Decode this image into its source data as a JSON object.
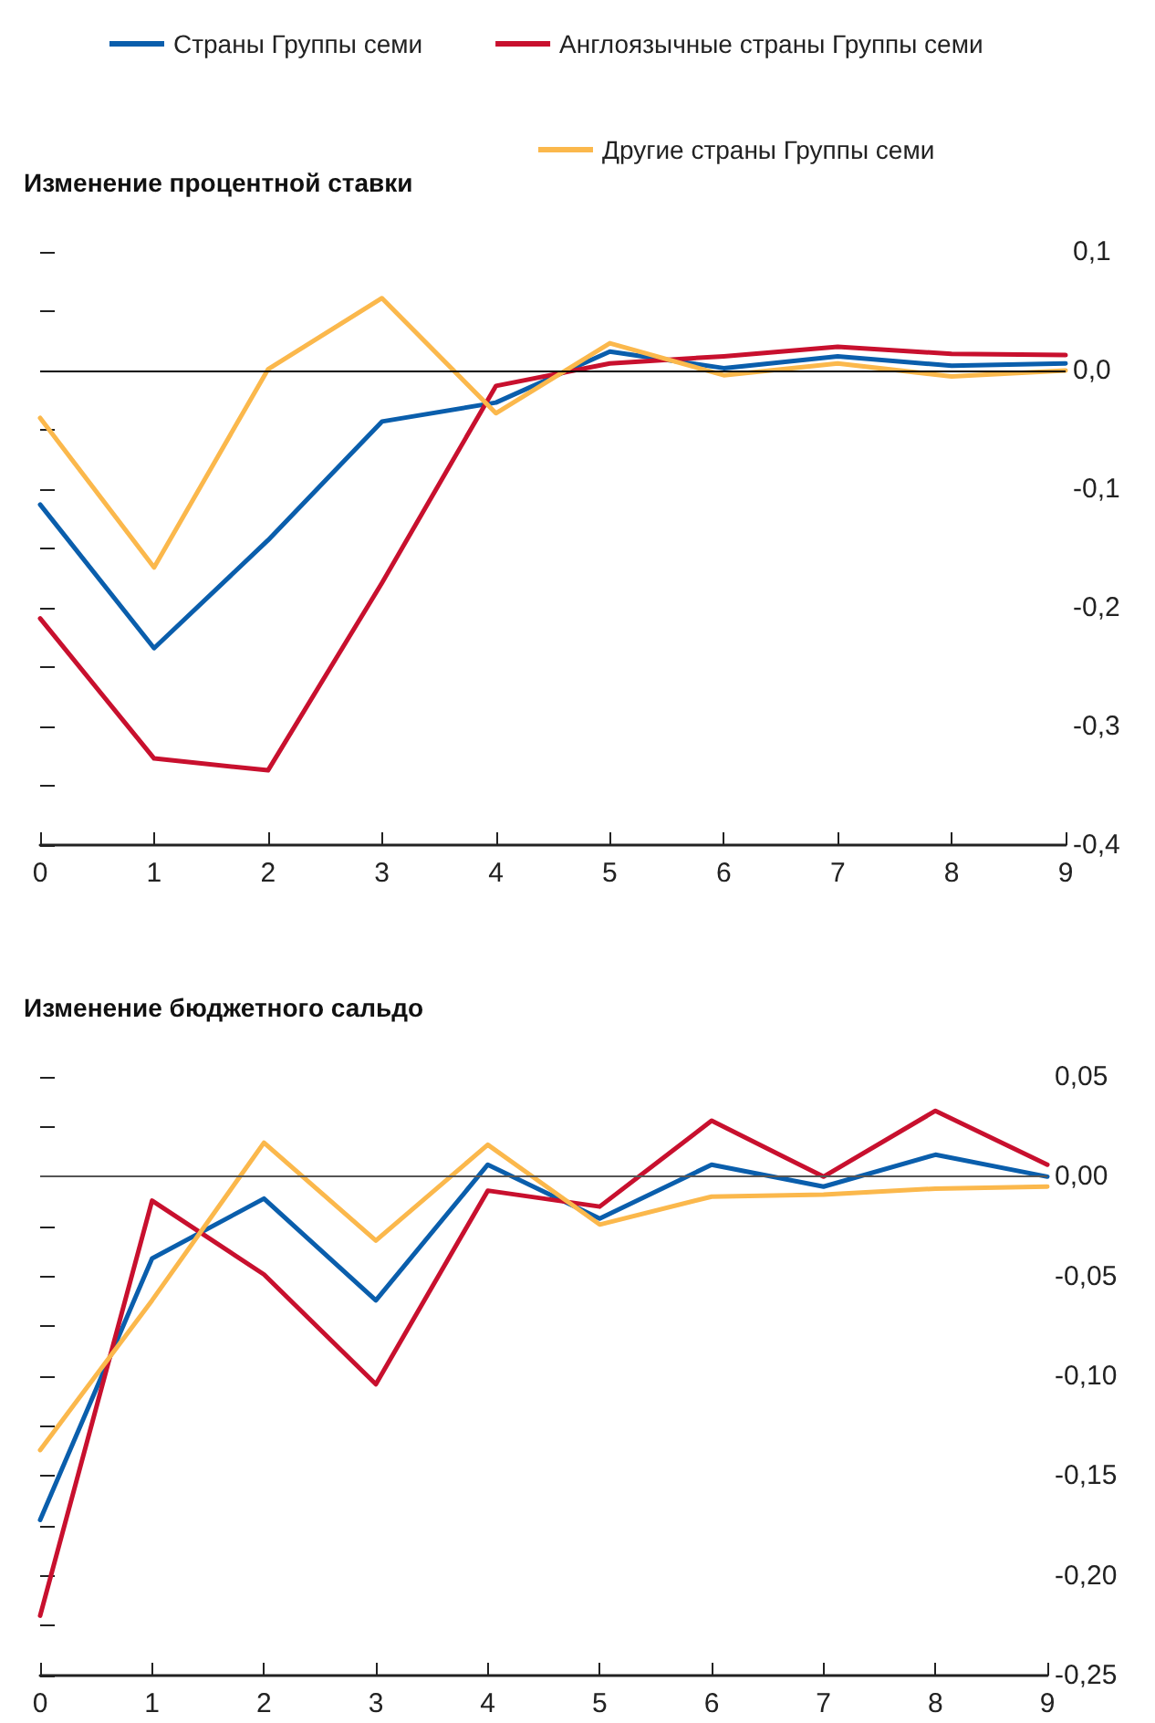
{
  "chart_data": [
    {
      "type": "line",
      "title": "Изменение процентной ставки",
      "x": [
        0,
        1,
        2,
        3,
        4,
        5,
        6,
        7,
        8,
        9
      ],
      "xlim": [
        0,
        9
      ],
      "xticks": [
        0,
        1,
        2,
        3,
        4,
        5,
        6,
        7,
        8,
        9
      ],
      "ylim": [
        -0.4,
        0.1
      ],
      "yticks": [
        {
          "value": -0.4,
          "label": "-0,4"
        },
        {
          "value": -0.35,
          "label": null
        },
        {
          "value": -0.3,
          "label": "-0,3"
        },
        {
          "value": -0.25,
          "label": null
        },
        {
          "value": -0.2,
          "label": "-0,2"
        },
        {
          "value": -0.15,
          "label": null
        },
        {
          "value": -0.1,
          "label": "-0,1"
        },
        {
          "value": -0.05,
          "label": null
        },
        {
          "value": 0,
          "label": "0,0"
        },
        {
          "value": 0.05,
          "label": null
        },
        {
          "value": 0.1,
          "label": "0,1"
        }
      ],
      "grid": false,
      "legend": "top",
      "marker": "none",
      "line_style": "solid",
      "ref_lines": [
        {
          "axis": "y",
          "value": 0,
          "color": "#000000"
        }
      ],
      "series": [
        {
          "name": "Страны Группы семи",
          "color": "#0a5eac",
          "values": [
            -0.113,
            -0.234,
            -0.143,
            -0.043,
            -0.027,
            0.016,
            0.002,
            0.012,
            0.004,
            0.006
          ]
        },
        {
          "name": "Англоязычные страны Группы семи",
          "color": "#c8102e",
          "values": [
            -0.209,
            -0.327,
            -0.337,
            -0.179,
            -0.013,
            0.006,
            0.012,
            0.02,
            0.014,
            0.013
          ]
        },
        {
          "name": "Другие страны Группы семи",
          "color": "#fbb84c",
          "values": [
            -0.04,
            -0.166,
            0.001,
            0.061,
            -0.036,
            0.023,
            -0.004,
            0.006,
            -0.005,
            0
          ]
        }
      ]
    },
    {
      "type": "line",
      "title": "Изменение бюджетного сальдо",
      "x": [
        0,
        1,
        2,
        3,
        4,
        5,
        6,
        7,
        8,
        9
      ],
      "xlim": [
        0,
        9
      ],
      "xticks": [
        0,
        1,
        2,
        3,
        4,
        5,
        6,
        7,
        8,
        9
      ],
      "ylim": [
        -0.25,
        0.05
      ],
      "yticks": [
        {
          "value": -0.25,
          "label": "-0,25"
        },
        {
          "value": -0.225,
          "label": null
        },
        {
          "value": -0.2,
          "label": "-0,20"
        },
        {
          "value": -0.175,
          "label": null
        },
        {
          "value": -0.15,
          "label": "-0,15"
        },
        {
          "value": -0.125,
          "label": null
        },
        {
          "value": -0.1,
          "label": "-0,10"
        },
        {
          "value": -0.075,
          "label": null
        },
        {
          "value": -0.05,
          "label": "-0,05"
        },
        {
          "value": -0.025,
          "label": null
        },
        {
          "value": 0,
          "label": "0,00"
        },
        {
          "value": 0.025,
          "label": null
        },
        {
          "value": 0.05,
          "label": "0,05"
        }
      ],
      "grid": false,
      "legend": false,
      "marker": "none",
      "line_style": "solid",
      "ref_lines": [
        {
          "axis": "y",
          "value": 0,
          "color": "#555555"
        }
      ],
      "series": [
        {
          "color": "#0a5eac",
          "values": [
            -0.172,
            -0.041,
            -0.011,
            -0.062,
            0.006,
            -0.021,
            0.006,
            -0.005,
            0.011,
            0
          ]
        },
        {
          "color": "#c8102e",
          "values": [
            -0.22,
            -0.012,
            -0.049,
            -0.104,
            -0.007,
            -0.015,
            0.028,
            0,
            0.033,
            0.006
          ]
        },
        {
          "color": "#fbb84c",
          "values": [
            -0.137,
            -0.062,
            0.017,
            -0.032,
            0.016,
            -0.024,
            -0.01,
            -0.009,
            -0.006,
            -0.005
          ]
        }
      ]
    }
  ]
}
